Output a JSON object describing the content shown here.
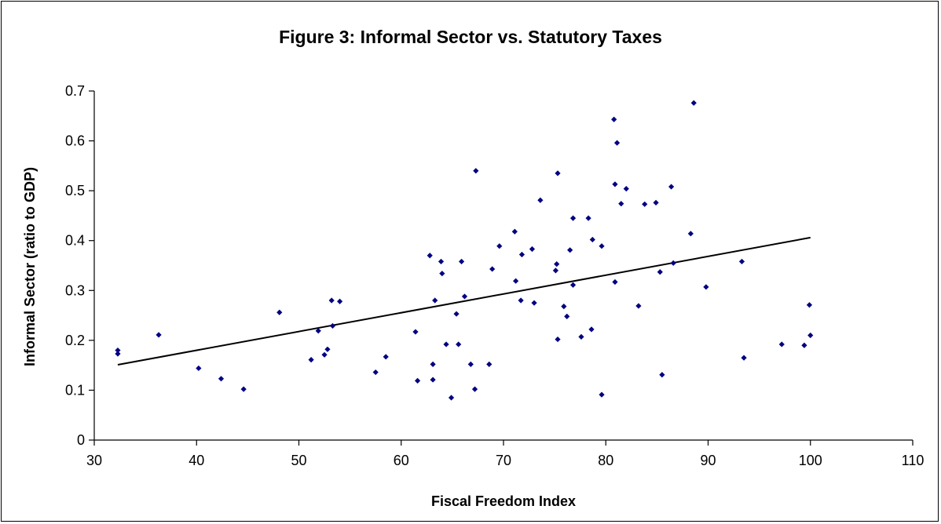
{
  "chart_data": {
    "type": "scatter",
    "title": "Figure 3: Informal Sector vs. Statutory Taxes",
    "xlabel": "Fiscal Freedom Index",
    "ylabel": "Informal Sector (ratio to GDP)",
    "xlim": [
      30,
      110
    ],
    "ylim": [
      0,
      0.7
    ],
    "x_ticks": [
      "30",
      "40",
      "50",
      "60",
      "70",
      "80",
      "90",
      "100",
      "110"
    ],
    "y_ticks": [
      "0",
      "0.1",
      "0.2",
      "0.3",
      "0.4",
      "0.5",
      "0.6",
      "0.7"
    ],
    "grid": false,
    "legend": "none",
    "marker_color": "#000080",
    "trendline": {
      "x": [
        32.3,
        100
      ],
      "y": [
        0.151,
        0.406
      ],
      "color": "#000000"
    },
    "points": [
      [
        32.3,
        0.18
      ],
      [
        32.3,
        0.173
      ],
      [
        36.3,
        0.211
      ],
      [
        40.2,
        0.144
      ],
      [
        42.4,
        0.123
      ],
      [
        44.6,
        0.102
      ],
      [
        48.1,
        0.256
      ],
      [
        51.2,
        0.161
      ],
      [
        51.9,
        0.219
      ],
      [
        52.5,
        0.171
      ],
      [
        52.8,
        0.182
      ],
      [
        53.2,
        0.28
      ],
      [
        53.3,
        0.229
      ],
      [
        54.0,
        0.278
      ],
      [
        57.5,
        0.136
      ],
      [
        58.5,
        0.167
      ],
      [
        61.4,
        0.217
      ],
      [
        61.6,
        0.119
      ],
      [
        62.8,
        0.37
      ],
      [
        63.1,
        0.152
      ],
      [
        63.1,
        0.121
      ],
      [
        63.3,
        0.28
      ],
      [
        63.9,
        0.358
      ],
      [
        64.0,
        0.334
      ],
      [
        64.4,
        0.192
      ],
      [
        64.9,
        0.085
      ],
      [
        65.4,
        0.253
      ],
      [
        65.6,
        0.192
      ],
      [
        65.9,
        0.358
      ],
      [
        66.2,
        0.288
      ],
      [
        66.8,
        0.152
      ],
      [
        67.2,
        0.102
      ],
      [
        67.3,
        0.54
      ],
      [
        68.6,
        0.152
      ],
      [
        68.9,
        0.343
      ],
      [
        69.6,
        0.389
      ],
      [
        71.1,
        0.418
      ],
      [
        71.2,
        0.319
      ],
      [
        71.7,
        0.28
      ],
      [
        71.8,
        0.372
      ],
      [
        72.8,
        0.383
      ],
      [
        73.0,
        0.275
      ],
      [
        73.6,
        0.481
      ],
      [
        75.1,
        0.34
      ],
      [
        75.2,
        0.353
      ],
      [
        75.3,
        0.535
      ],
      [
        75.3,
        0.202
      ],
      [
        75.9,
        0.268
      ],
      [
        76.2,
        0.248
      ],
      [
        76.5,
        0.381
      ],
      [
        76.8,
        0.445
      ],
      [
        76.8,
        0.311
      ],
      [
        77.6,
        0.207
      ],
      [
        78.3,
        0.445
      ],
      [
        78.6,
        0.222
      ],
      [
        78.7,
        0.402
      ],
      [
        79.6,
        0.389
      ],
      [
        79.6,
        0.091
      ],
      [
        80.8,
        0.643
      ],
      [
        80.9,
        0.513
      ],
      [
        80.9,
        0.317
      ],
      [
        81.1,
        0.596
      ],
      [
        81.5,
        0.474
      ],
      [
        82.0,
        0.504
      ],
      [
        83.2,
        0.269
      ],
      [
        83.8,
        0.473
      ],
      [
        84.9,
        0.476
      ],
      [
        85.3,
        0.337
      ],
      [
        85.5,
        0.131
      ],
      [
        86.4,
        0.508
      ],
      [
        86.6,
        0.355
      ],
      [
        88.3,
        0.414
      ],
      [
        88.6,
        0.676
      ],
      [
        89.8,
        0.307
      ],
      [
        93.3,
        0.358
      ],
      [
        93.5,
        0.165
      ],
      [
        97.2,
        0.192
      ],
      [
        99.4,
        0.19
      ],
      [
        99.9,
        0.271
      ],
      [
        100.0,
        0.21
      ]
    ]
  }
}
